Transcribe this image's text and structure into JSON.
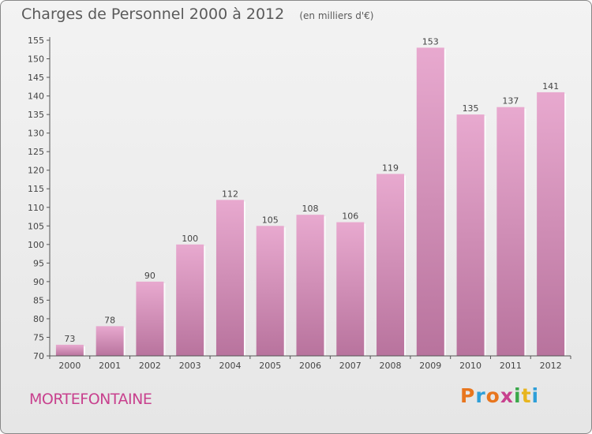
{
  "header": {
    "title": "Charges de Personnel 2000 à 2012",
    "subtitle": "(en milliers d'€)"
  },
  "footer": {
    "commune": "MORTEFONTAINE",
    "brand": "Proxiti",
    "brand_letters": [
      {
        "ch": "P",
        "color": "#e8761e"
      },
      {
        "ch": "r",
        "color": "#2f9fd8"
      },
      {
        "ch": "o",
        "color": "#e8761e"
      },
      {
        "ch": "x",
        "color": "#c8418e"
      },
      {
        "ch": "i",
        "color": "#3aa84a"
      },
      {
        "ch": "t",
        "color": "#e8b51e"
      },
      {
        "ch": "i",
        "color": "#2f9fd8"
      }
    ]
  },
  "colors": {
    "bar_top": "#e8a9cf",
    "bar_bottom": "#b8739d",
    "axis": "#555555",
    "commune": "#c8418e"
  },
  "chart_data": {
    "type": "bar",
    "title": "Charges de Personnel 2000 à 2012",
    "subtitle": "(en milliers d'€)",
    "categories": [
      "2000",
      "2001",
      "2002",
      "2003",
      "2004",
      "2005",
      "2006",
      "2007",
      "2008",
      "2009",
      "2010",
      "2011",
      "2012"
    ],
    "values": [
      73,
      78,
      90,
      100,
      112,
      105,
      108,
      106,
      119,
      153,
      135,
      137,
      141
    ],
    "ylim": [
      70,
      155
    ],
    "yticks": [
      70,
      75,
      80,
      85,
      90,
      95,
      100,
      105,
      110,
      115,
      120,
      125,
      130,
      135,
      140,
      145,
      150,
      155
    ],
    "grid": false,
    "legend": "none",
    "data_labels": true
  }
}
